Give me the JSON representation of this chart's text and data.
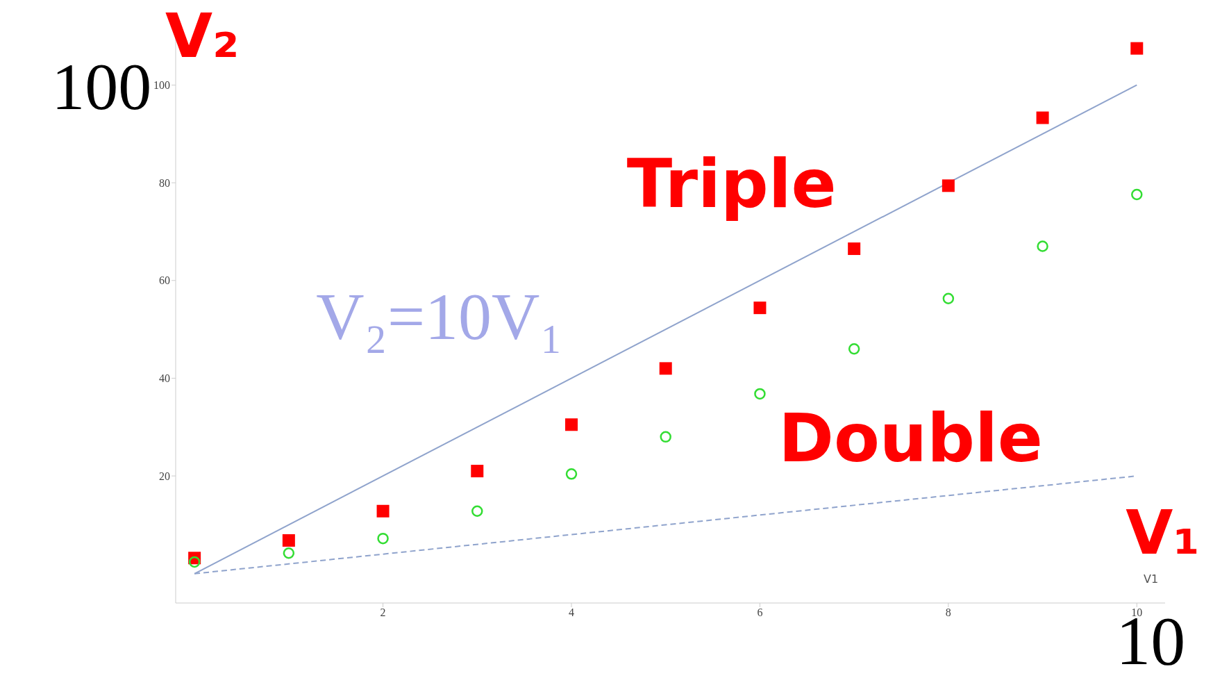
{
  "chart_data": {
    "type": "scatter",
    "xlabel": "V₁",
    "ylabel": "V₂",
    "xlim": [
      -0.2,
      10.3
    ],
    "ylim": [
      -6,
      112
    ],
    "xticks": [
      2,
      4,
      6,
      8,
      10
    ],
    "yticks": [
      20,
      40,
      60,
      80,
      100
    ],
    "series": [
      {
        "type": "line",
        "color": "#8fa3cc",
        "line_style": "solid",
        "marker": "none",
        "x": [
          0,
          10
        ],
        "values": [
          0,
          100
        ]
      },
      {
        "type": "line",
        "color": "#8fa3cc",
        "line_style": "dashed",
        "marker": "none",
        "x": [
          0,
          10
        ],
        "values": [
          0,
          20
        ]
      },
      {
        "type": "scatter",
        "color": "#ff0000",
        "marker": "square",
        "x": [
          0,
          1,
          2,
          3,
          4,
          5,
          6,
          7,
          8,
          9,
          10
        ],
        "values": [
          3.2,
          6.8,
          12.8,
          21,
          30.5,
          42,
          54.4,
          66.5,
          79.4,
          93.3,
          107.5
        ]
      },
      {
        "type": "scatter",
        "color": "#33dd33",
        "marker": "circle",
        "x": [
          0,
          1,
          2,
          3,
          4,
          5,
          6,
          7,
          8,
          9,
          10
        ],
        "values": [
          2.4,
          4.2,
          7.2,
          12.8,
          20.4,
          28,
          36.8,
          46,
          56.3,
          67,
          77.6
        ]
      }
    ],
    "annotations": [
      "Triple",
      "Double",
      "V₂=10V₁",
      "100",
      "10",
      "V1"
    ]
  }
}
